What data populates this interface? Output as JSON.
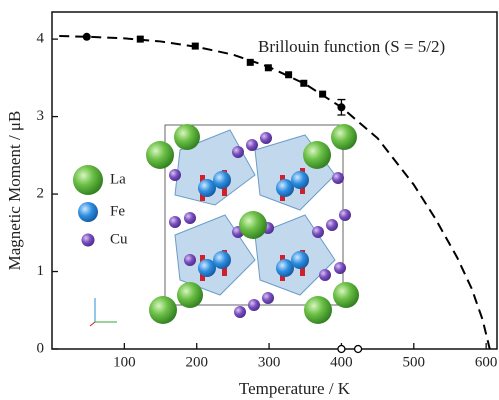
{
  "chart_data": {
    "type": "scatter",
    "xlabel": "Temperature / K",
    "ylabel": "Magnetic Moment / μB",
    "annotation": "Brillouin function (S = 5/2)",
    "xlim": [
      0,
      615
    ],
    "ylim": [
      0,
      4.35
    ],
    "xticks": [
      100,
      200,
      300,
      400,
      500,
      600
    ],
    "yticks": [
      0,
      1,
      2,
      3,
      4
    ],
    "series": [
      {
        "marker": "dashed-line",
        "color": "#000000",
        "x": [
          10,
          50,
          100,
          150,
          200,
          250,
          300,
          350,
          400,
          450,
          500,
          530,
          560,
          580,
          595,
          605
        ],
        "values": [
          4.04,
          4.03,
          4.01,
          3.97,
          3.9,
          3.8,
          3.64,
          3.42,
          3.12,
          2.72,
          2.12,
          1.68,
          1.18,
          0.78,
          0.38,
          0
        ]
      },
      {
        "marker": "square",
        "color": "#000000",
        "x": [
          122,
          198,
          274,
          299,
          327,
          348,
          374
        ],
        "values": [
          4.0,
          3.91,
          3.7,
          3.63,
          3.54,
          3.43,
          3.29
        ]
      },
      {
        "marker": "circle",
        "color": "#000000",
        "x": [
          48,
          400
        ],
        "values": [
          4.03,
          3.12
        ],
        "errors": [
          0,
          0.1
        ]
      },
      {
        "marker": "open-circle",
        "color": "#000000",
        "x": [
          400,
          423
        ],
        "values": [
          0,
          0
        ]
      }
    ]
  },
  "inset": {
    "legend": [
      "La",
      "Fe",
      "Cu"
    ]
  }
}
